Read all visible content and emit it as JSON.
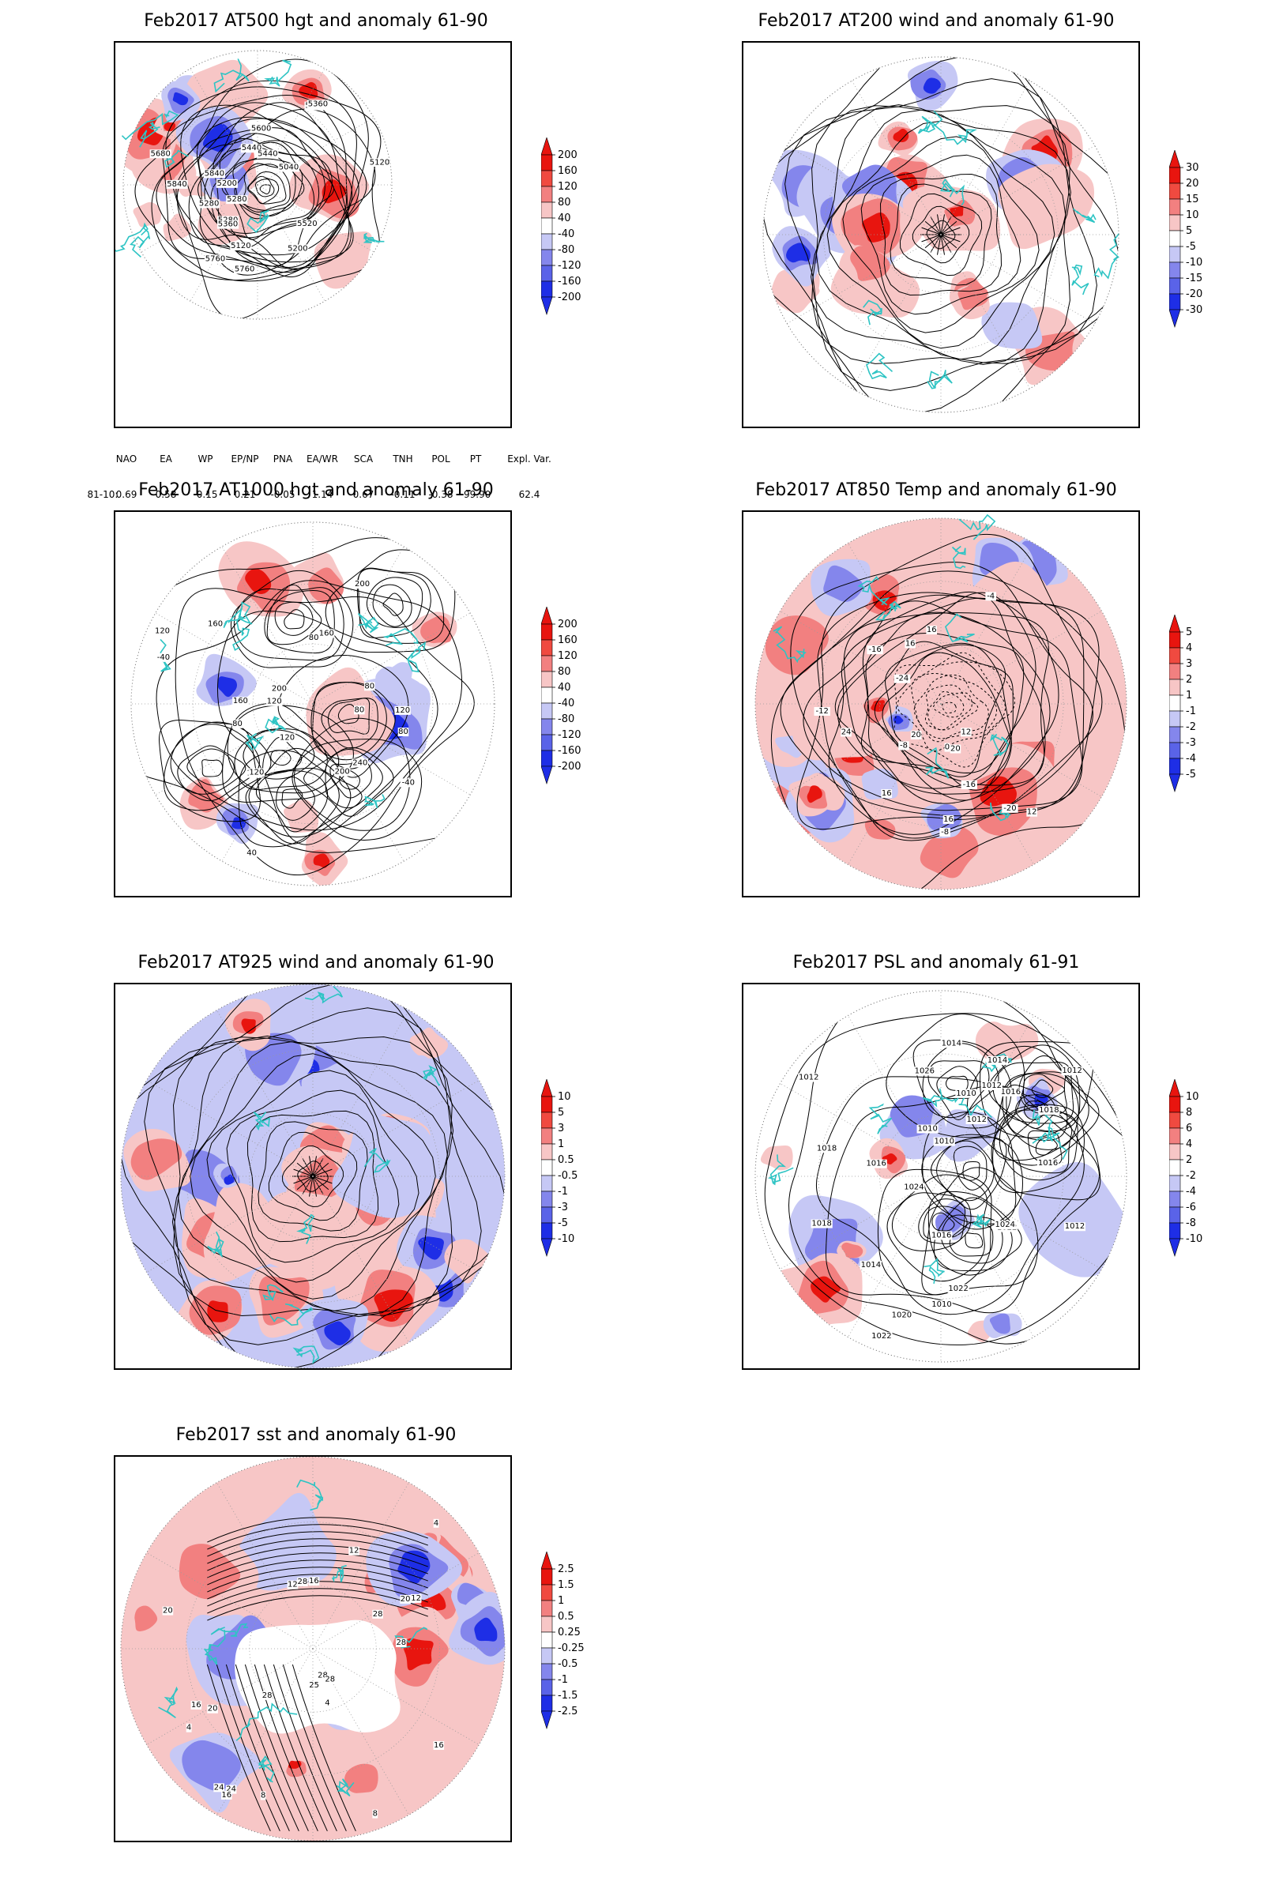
{
  "page": {
    "background": "#ffffff"
  },
  "colors": {
    "coast": "#2ec4c4",
    "contour": "#000000",
    "pos_strong": "#e8150f",
    "pos_mid": "#f28080",
    "pos_light": "#f7c6c6",
    "neg_light": "#c6c8f5",
    "neg_mid": "#8486ec",
    "neg_strong": "#1e2ee6",
    "grid": "#9a9a9a"
  },
  "panels": [
    {
      "id": "z500",
      "title": "Feb2017 AT500 hgt and anomaly 61-90",
      "colorbar": [
        "200",
        "160",
        "120",
        "80",
        "40",
        "-40",
        "-80",
        "-120",
        "-160",
        "-200"
      ],
      "contour_labels": [
        "5840",
        "5760",
        "5280",
        "5280",
        "5440",
        "5360",
        "5280",
        "5200",
        "5120",
        "5120",
        "5040",
        "5200",
        "5280",
        "5360",
        "5440",
        "5520",
        "5600",
        "5680",
        "5760",
        "5840"
      ],
      "chart_data": {
        "type": "heatmap",
        "field": "500 hPa geopotential height (contours) and anomaly (shading)",
        "colorbar_levels": [
          200,
          160,
          120,
          80,
          40,
          -40,
          -80,
          -120,
          -160,
          -200
        ],
        "contour_values": [
          5840,
          5760,
          5680,
          5600,
          5520,
          5440,
          5360,
          5280,
          5200,
          5120,
          5040
        ],
        "projection": "north polar stereographic"
      }
    },
    {
      "id": "w200",
      "title": "Feb2017 AT200 wind and anomaly 61-90",
      "colorbar": [
        "30",
        "20",
        "15",
        "10",
        "5",
        "-5",
        "-10",
        "-15",
        "-20",
        "-30"
      ],
      "contour_labels": [],
      "chart_data": {
        "type": "heatmap",
        "field": "200 hPa wind streamlines and speed anomaly (shading)",
        "colorbar_levels": [
          30,
          20,
          15,
          10,
          5,
          -5,
          -10,
          -15,
          -20,
          -30
        ],
        "projection": "north polar stereographic"
      }
    },
    {
      "id": "z1000",
      "title": "Feb2017 AT1000 hgt and anomaly 61-90",
      "colorbar": [
        "200",
        "160",
        "120",
        "80",
        "40",
        "-40",
        "-80",
        "-120",
        "-160",
        "-200"
      ],
      "contour_labels": [
        "120",
        "80",
        "80",
        "-40",
        "160",
        "80",
        "40",
        "120",
        "200",
        "120",
        "-40",
        "240",
        "120",
        "160",
        "120",
        "200",
        "200",
        "160",
        "120",
        "80",
        "80"
      ],
      "chart_data": {
        "type": "heatmap",
        "field": "1000 hPa geopotential height (contours) and anomaly (shading)",
        "colorbar_levels": [
          200,
          160,
          120,
          80,
          40,
          -40,
          -80,
          -120,
          -160,
          -200
        ],
        "contour_values": [
          -40,
          40,
          80,
          120,
          160,
          200,
          240
        ],
        "projection": "north polar stereographic"
      }
    },
    {
      "id": "t850",
      "title": "Feb2017 AT850 Temp and anomaly 61-90",
      "colorbar": [
        "5",
        "4",
        "3",
        "2",
        "1",
        "-1",
        "-2",
        "-3",
        "-4",
        "-5"
      ],
      "contour_labels": [
        "16",
        "12",
        "16",
        "0",
        "-4",
        "-8",
        "-16",
        "-20",
        "-24",
        "-16",
        "-12",
        "-8",
        "16",
        "12",
        "16",
        "20",
        "24",
        "20"
      ],
      "chart_data": {
        "type": "heatmap",
        "field": "850 hPa temperature (contours) and anomaly (shading)",
        "colorbar_levels": [
          5,
          4,
          3,
          2,
          1,
          -1,
          -2,
          -3,
          -4,
          -5
        ],
        "contour_values": [
          -24,
          -20,
          -16,
          -12,
          -8,
          -4,
          0,
          4,
          8,
          12,
          16,
          20,
          24
        ],
        "projection": "north polar stereographic"
      }
    },
    {
      "id": "w925",
      "title": "Feb2017 AT925 wind and anomaly 61-90",
      "colorbar": [
        "10",
        "5",
        "3",
        "1",
        "0.5",
        "-0.5",
        "-1",
        "-3",
        "-5",
        "-10"
      ],
      "contour_labels": [],
      "chart_data": {
        "type": "heatmap",
        "field": "925 hPa wind streamlines and speed anomaly (shading)",
        "colorbar_levels": [
          10,
          5,
          3,
          1,
          0.5,
          -0.5,
          -1,
          -3,
          -5,
          -10
        ],
        "projection": "north polar stereographic"
      }
    },
    {
      "id": "psl",
      "title": "Feb2017 PSL and anomaly 61-91",
      "colorbar": [
        "10",
        "8",
        "6",
        "4",
        "2",
        "-2",
        "-4",
        "-6",
        "-8",
        "-10"
      ],
      "contour_labels": [
        "1010",
        "1014",
        "1012",
        "1016",
        "1010",
        "1018",
        "1016",
        "1014",
        "1022",
        "1026",
        "1024",
        "1012",
        "1018",
        "1020",
        "1022",
        "1024",
        "1016",
        "1018",
        "1012",
        "1022",
        "1016",
        "1014",
        "1010",
        "1012",
        "1010",
        "1012"
      ],
      "chart_data": {
        "type": "heatmap",
        "field": "Sea level pressure (contours) and anomaly (shading)",
        "colorbar_levels": [
          10,
          8,
          6,
          4,
          2,
          -2,
          -4,
          -6,
          -8,
          -10
        ],
        "contour_values": [
          994,
          998,
          1002,
          1006,
          1008,
          1010,
          1012,
          1014,
          1016,
          1018,
          1020,
          1022,
          1024,
          1026,
          1030,
          1034,
          1038
        ],
        "projection": "north polar stereographic"
      }
    },
    {
      "id": "sst",
      "title": "Feb2017 sst and anomaly 61-90",
      "colorbar": [
        "2.5",
        "1.5",
        "1",
        "0.5",
        "0.25",
        "-0.25",
        "-0.5",
        "-1",
        "-1.5",
        "-2.5"
      ],
      "contour_labels": [
        "25",
        "28",
        "28",
        "24",
        "24",
        "20",
        "20",
        "16",
        "16",
        "12",
        "12",
        "8",
        "4",
        "4",
        "28",
        "28",
        "20",
        "12",
        "8",
        "4",
        "16",
        "16",
        "28",
        "28"
      ],
      "chart_data": {
        "type": "heatmap",
        "field": "Sea surface temperature (contours) and anomaly (shading)",
        "colorbar_levels": [
          2.5,
          1.5,
          1,
          0.5,
          0.25,
          -0.25,
          -0.5,
          -1,
          -1.5,
          -2.5
        ],
        "contour_values": [
          4,
          8,
          12,
          16,
          20,
          24,
          25,
          28
        ],
        "projection": "north polar stereographic"
      }
    }
  ],
  "teleconnection": {
    "headers": [
      "NAO",
      "EA",
      "WP",
      "EP/NP",
      "PNA",
      "EA/WR",
      "SCA",
      "TNH",
      "POL",
      "PT",
      "Expl. Var."
    ],
    "row_label": "81-10:",
    "values": [
      "0.69",
      "0.58",
      "-0.15",
      "0.21",
      "-0.05",
      "1.14",
      "0.67",
      "-0.11",
      "-0.38",
      "-99.90",
      "62.4"
    ]
  }
}
